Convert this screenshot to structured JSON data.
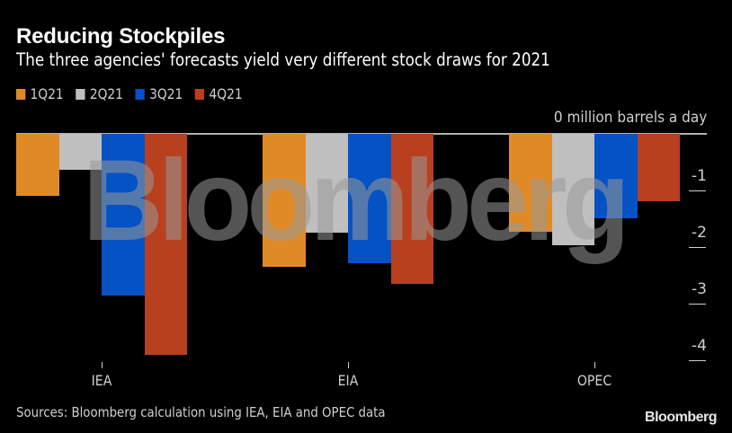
{
  "header": {
    "title": "Reducing Stockpiles",
    "subtitle": "The three agencies' forecasts yield very different stock draws for 2021"
  },
  "legend": [
    {
      "label": "1Q21",
      "color": "#e08a26"
    },
    {
      "label": "2Q21",
      "color": "#bfbfbf"
    },
    {
      "label": "3Q21",
      "color": "#0452c4"
    },
    {
      "label": "4Q21",
      "color": "#b9401f"
    }
  ],
  "axis": {
    "unit_label": "0 million barrels a day",
    "y_ticks": [
      "-1",
      "-2",
      "-3",
      "-4"
    ]
  },
  "footer": {
    "source": "Sources: Bloomberg calculation using IEA, EIA and OPEC data",
    "logo": "Bloomberg"
  },
  "watermark": "Bloomberg",
  "chart_data": {
    "type": "bar",
    "title": "Reducing Stockpiles",
    "subtitle": "The three agencies' forecasts yield very different stock draws for 2021",
    "categories": [
      "IEA",
      "EIA",
      "OPEC"
    ],
    "series": [
      {
        "name": "1Q21",
        "color": "#e08a26",
        "values": [
          -1.1,
          -2.35,
          -1.73
        ]
      },
      {
        "name": "2Q21",
        "color": "#bfbfbf",
        "values": [
          -0.63,
          -1.75,
          -1.97
        ]
      },
      {
        "name": "3Q21",
        "color": "#0452c4",
        "values": [
          -2.86,
          -2.29,
          -1.49
        ]
      },
      {
        "name": "4Q21",
        "color": "#b9401f",
        "values": [
          -3.9,
          -2.65,
          -1.19
        ]
      }
    ],
    "xlabel": "",
    "ylabel": "million barrels a day",
    "ylim": [
      -4,
      0
    ],
    "y_ticks": [
      0,
      -1,
      -2,
      -3,
      -4
    ],
    "y_axis_position": "right",
    "grid": false,
    "legend_position": "top-left",
    "source": "Sources: Bloomberg calculation using IEA, EIA and OPEC data"
  }
}
